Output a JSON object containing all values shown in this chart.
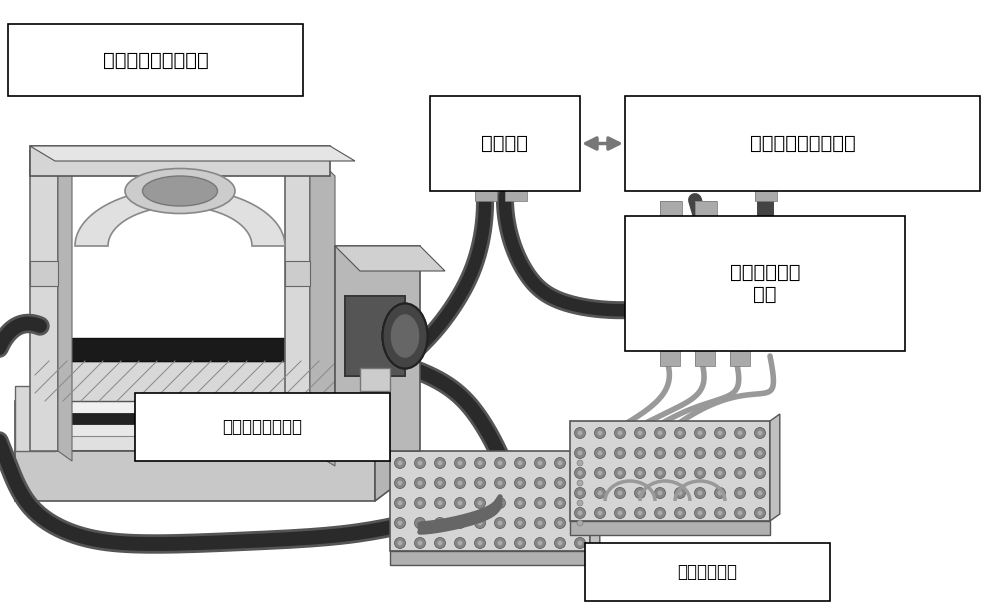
{
  "bg_color": "#ffffff",
  "box_edge_color": "#000000",
  "dark_gray": "#2a2a2a",
  "mid_gray": "#7a7a7a",
  "light_gray": "#bbbbbb",
  "lighter_gray": "#dddddd",
  "cable_dark": "#333333",
  "cable_mid": "#888888",
  "label_多电极": "多电极随动连出模块",
  "label_控制": "控制模块",
  "label_性能": "性能监控和显示模块",
  "label_电学L1": "电学性能测试",
  "label_电学L2": "模块",
  "label_电机": "电机驱动弯曲模块",
  "label_电路": "电路连接模块",
  "font_size_main": 14,
  "font_size_small": 12
}
